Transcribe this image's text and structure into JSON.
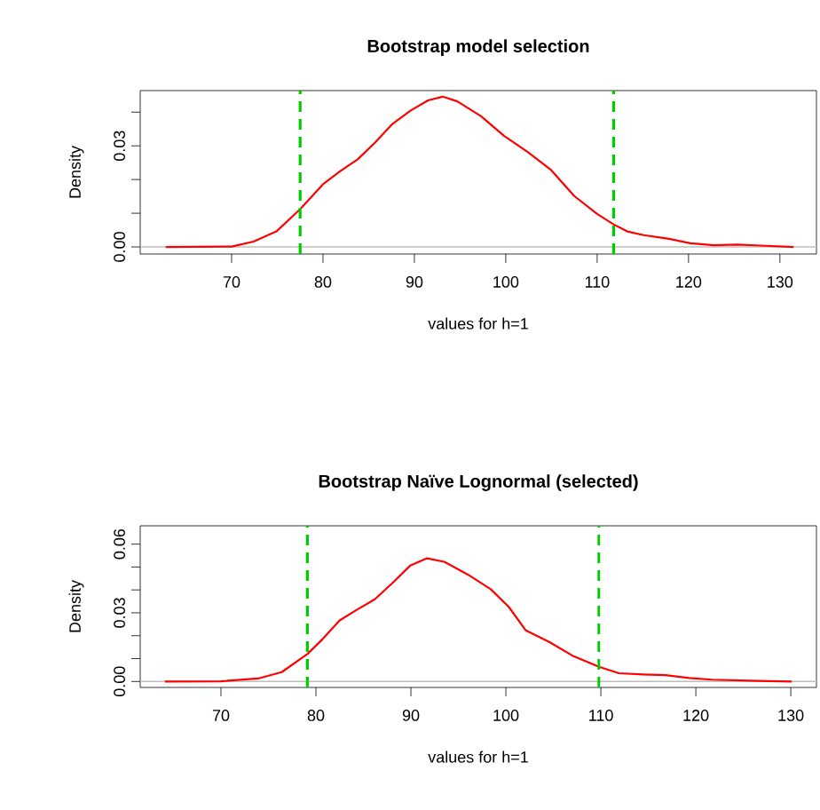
{
  "chart_data": [
    {
      "type": "line",
      "title": "Bootstrap model selection",
      "xlabel": "values for h=1",
      "ylabel": "Density",
      "xlim": [
        60,
        134
      ],
      "ylim": [
        -0.0021,
        0.0464
      ],
      "xticks": [
        70,
        80,
        90,
        100,
        110,
        120,
        130
      ],
      "yticks": [
        {
          "value": 0,
          "label": "0.00"
        },
        {
          "value": 0.01,
          "label": null
        },
        {
          "value": 0.02,
          "label": null
        },
        {
          "value": 0.03,
          "label": "0.03"
        },
        {
          "value": 0.04,
          "label": null
        }
      ],
      "x": [
        62.8,
        70,
        72.4,
        74.9,
        77.5,
        80,
        81.9,
        83.8,
        85.7,
        87.6,
        89.6,
        91.5,
        93.1,
        94.7,
        97.3,
        99.8,
        102.4,
        104.9,
        107.5,
        110,
        111.8,
        113.3,
        115.1,
        117.7,
        120.2,
        122.8,
        125.3,
        127.9,
        131.5
      ],
      "series": [
        {
          "color": "#ff0000",
          "values": [
            0,
            0.0001,
            0.0016,
            0.0046,
            0.0112,
            0.0186,
            0.0225,
            0.026,
            0.031,
            0.0365,
            0.0405,
            0.0435,
            0.0446,
            0.0432,
            0.0388,
            0.033,
            0.0282,
            0.023,
            0.0151,
            0.0098,
            0.0067,
            0.0046,
            0.0035,
            0.0025,
            0.0011,
            0.0005,
            0.0007,
            0.0004,
            0
          ]
        }
      ],
      "ref_lines": [
        {
          "axis": "y",
          "value": 0,
          "color": "#bebebe"
        },
        {
          "axis": "x",
          "value": 77.5,
          "color": "#00cd00",
          "line_style": "dashed"
        },
        {
          "axis": "x",
          "value": 111.8,
          "color": "#00cd00",
          "line_style": "dashed"
        }
      ]
    },
    {
      "type": "line",
      "title": "Bootstrap Naïve Lognormal (selected)",
      "xlabel": "values for h=1",
      "ylabel": "Density",
      "xlim": [
        61.5,
        132.7
      ],
      "ylim": [
        -0.0026,
        0.068
      ],
      "xticks": [
        70,
        80,
        90,
        100,
        110,
        120,
        130
      ],
      "yticks": [
        {
          "value": 0,
          "label": "0.00"
        },
        {
          "value": 0.01,
          "label": null
        },
        {
          "value": 0.02,
          "label": null
        },
        {
          "value": 0.03,
          "label": "0.03"
        },
        {
          "value": 0.04,
          "label": null
        },
        {
          "value": 0.05,
          "label": null
        },
        {
          "value": 0.06,
          "label": "0.06"
        }
      ],
      "x": [
        64.1,
        70,
        73.9,
        76.4,
        79.1,
        80.7,
        82.5,
        84.3,
        86.2,
        88,
        89.9,
        91.7,
        93.5,
        96,
        98.4,
        100.3,
        102.1,
        104.6,
        107,
        109.8,
        111.9,
        114.4,
        116.8,
        119.3,
        121.7,
        126.6,
        130.1
      ],
      "series": [
        {
          "color": "#ff0000",
          "values": [
            0,
            0.0001,
            0.0013,
            0.0041,
            0.012,
            0.0185,
            0.0267,
            0.0313,
            0.0359,
            0.0428,
            0.0505,
            0.0538,
            0.0523,
            0.0467,
            0.0403,
            0.0326,
            0.0223,
            0.0172,
            0.0113,
            0.0064,
            0.0036,
            0.0031,
            0.0028,
            0.0015,
            0.0008,
            0.0003,
            0
          ]
        }
      ],
      "ref_lines": [
        {
          "axis": "y",
          "value": 0,
          "color": "#bebebe"
        },
        {
          "axis": "x",
          "value": 79.1,
          "color": "#00cd00",
          "line_style": "dashed"
        },
        {
          "axis": "x",
          "value": 109.8,
          "color": "#00cd00",
          "line_style": "dashed"
        }
      ]
    }
  ]
}
